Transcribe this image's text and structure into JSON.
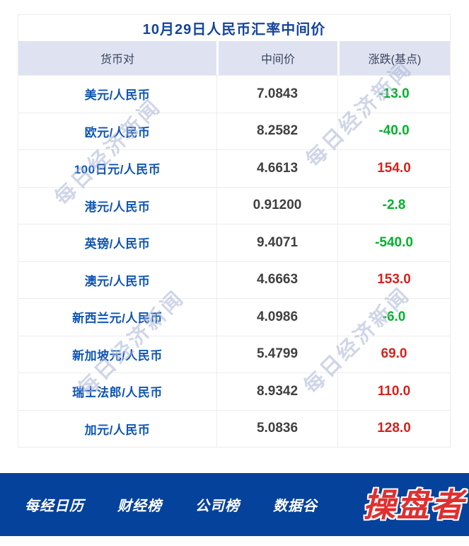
{
  "title": "10月29日人民币汇率中间价",
  "watermark": "每日经济新闻",
  "table": {
    "headers": [
      "货币对",
      "中间价",
      "涨跌(基点)"
    ],
    "rows": [
      {
        "pair": "美元/人民币",
        "mid": "7.0843",
        "change": "-13.0"
      },
      {
        "pair": "欧元/人民币",
        "mid": "8.2582",
        "change": "-40.0"
      },
      {
        "pair": "100日元/人民币",
        "mid": "4.6613",
        "change": "154.0"
      },
      {
        "pair": "港元/人民币",
        "mid": "0.91200",
        "change": "-2.8"
      },
      {
        "pair": "英镑/人民币",
        "mid": "9.4071",
        "change": "-540.0"
      },
      {
        "pair": "澳元/人民币",
        "mid": "4.6663",
        "change": "153.0"
      },
      {
        "pair": "新西兰元/人民币",
        "mid": "4.0986",
        "change": "-6.0"
      },
      {
        "pair": "新加坡元/人民币",
        "mid": "5.4799",
        "change": "69.0"
      },
      {
        "pair": "瑞士法郎/人民币",
        "mid": "8.9342",
        "change": "110.0"
      },
      {
        "pair": "加元/人民币",
        "mid": "5.0836",
        "change": "128.0"
      }
    ]
  },
  "footer": {
    "nav": [
      "每经日历",
      "财经榜",
      "公司榜",
      "数据谷"
    ],
    "logo": "操盘者"
  },
  "colors": {
    "title_blue": "#14459c",
    "pair_blue": "#0f55b2",
    "up_red": "#d3231d",
    "down_green": "#00b22d",
    "header_bg": "#dfe3f1",
    "footer_blue": "#05429b",
    "logo_red": "#e02f2f",
    "watermark": "#a9b4d6"
  }
}
